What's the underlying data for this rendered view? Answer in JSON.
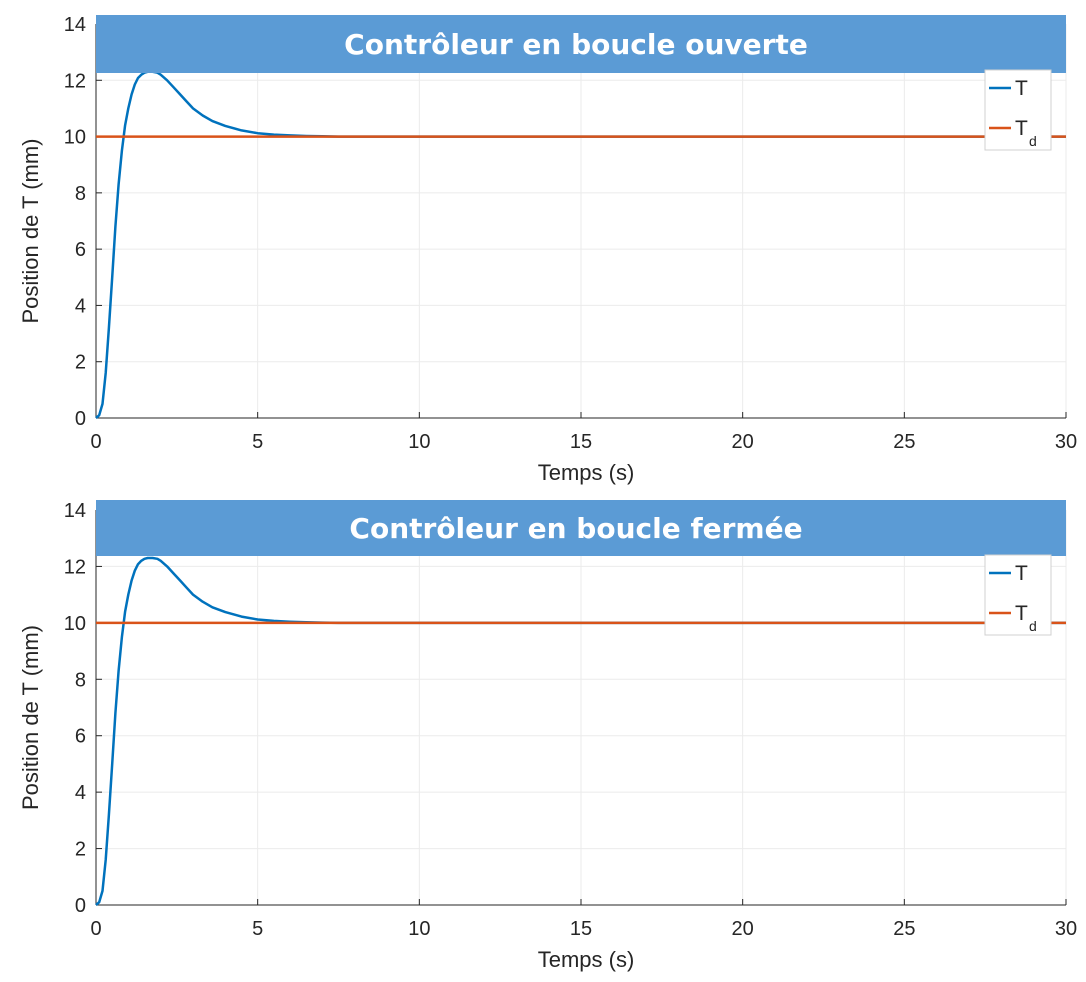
{
  "colors": {
    "banner": "#5b9bd5",
    "series_T": "#0072bd",
    "series_Td": "#d95319",
    "grid": "#ebebeb",
    "axis": "#262626"
  },
  "chart_data": [
    {
      "type": "line",
      "title": "Contrôleur en boucle ouverte",
      "xlabel": "Temps (s)",
      "ylabel": "Position de T (mm)",
      "xlim": [
        0,
        30
      ],
      "ylim": [
        0,
        14
      ],
      "xticks": [
        0,
        5,
        10,
        15,
        20,
        25,
        30
      ],
      "yticks": [
        0,
        2,
        4,
        6,
        8,
        10,
        12,
        14
      ],
      "grid": true,
      "legend_position": "top-right",
      "legend": [
        {
          "label": "T",
          "sub": ""
        },
        {
          "label": "T",
          "sub": "d"
        }
      ],
      "series": [
        {
          "name": "T",
          "x": [
            0,
            0.1,
            0.2,
            0.3,
            0.4,
            0.5,
            0.6,
            0.7,
            0.8,
            0.9,
            1.0,
            1.1,
            1.2,
            1.3,
            1.4,
            1.5,
            1.6,
            1.75,
            1.9,
            2.0,
            2.2,
            2.4,
            2.6,
            2.8,
            3.0,
            3.3,
            3.6,
            4.0,
            4.5,
            5.0,
            5.5,
            6.0,
            6.5,
            7.0,
            7.5,
            8.0,
            9.0,
            10,
            12,
            15,
            20,
            25,
            30
          ],
          "y": [
            0,
            0.1,
            0.5,
            1.6,
            3.2,
            5.0,
            6.8,
            8.3,
            9.5,
            10.4,
            11.0,
            11.5,
            11.85,
            12.08,
            12.2,
            12.27,
            12.3,
            12.3,
            12.27,
            12.2,
            12.0,
            11.75,
            11.5,
            11.25,
            11.0,
            10.75,
            10.55,
            10.38,
            10.22,
            10.12,
            10.07,
            10.04,
            10.02,
            10.01,
            10.0,
            10.0,
            10.0,
            10.0,
            10.0,
            10.0,
            10.0,
            10.0,
            10.0
          ]
        },
        {
          "name": "T",
          "sub": "d",
          "x": [
            0,
            30
          ],
          "y": [
            10,
            10
          ]
        }
      ]
    },
    {
      "type": "line",
      "title": "Contrôleur en boucle fermée",
      "xlabel": "Temps (s)",
      "ylabel": "Position de T (mm)",
      "xlim": [
        0,
        30
      ],
      "ylim": [
        0,
        14
      ],
      "xticks": [
        0,
        5,
        10,
        15,
        20,
        25,
        30
      ],
      "yticks": [
        0,
        2,
        4,
        6,
        8,
        10,
        12,
        14
      ],
      "grid": true,
      "legend_position": "top-right",
      "legend": [
        {
          "label": "T",
          "sub": ""
        },
        {
          "label": "T",
          "sub": "d"
        }
      ],
      "series": [
        {
          "name": "T",
          "x": [
            0,
            0.1,
            0.2,
            0.3,
            0.4,
            0.5,
            0.6,
            0.7,
            0.8,
            0.9,
            1.0,
            1.1,
            1.2,
            1.3,
            1.4,
            1.5,
            1.6,
            1.75,
            1.9,
            2.0,
            2.2,
            2.4,
            2.6,
            2.8,
            3.0,
            3.3,
            3.6,
            4.0,
            4.5,
            5.0,
            5.5,
            6.0,
            6.5,
            7.0,
            7.5,
            8.0,
            9.0,
            10,
            12,
            15,
            20,
            25,
            30
          ],
          "y": [
            0,
            0.1,
            0.5,
            1.6,
            3.2,
            5.0,
            6.8,
            8.3,
            9.5,
            10.4,
            11.0,
            11.5,
            11.85,
            12.08,
            12.2,
            12.27,
            12.3,
            12.3,
            12.27,
            12.2,
            12.0,
            11.75,
            11.5,
            11.25,
            11.0,
            10.75,
            10.55,
            10.38,
            10.22,
            10.12,
            10.07,
            10.04,
            10.02,
            10.01,
            10.0,
            10.0,
            10.0,
            10.0,
            10.0,
            10.0,
            10.0,
            10.0,
            10.0
          ]
        },
        {
          "name": "T",
          "sub": "d",
          "x": [
            0,
            30
          ],
          "y": [
            10,
            10
          ]
        }
      ]
    }
  ]
}
